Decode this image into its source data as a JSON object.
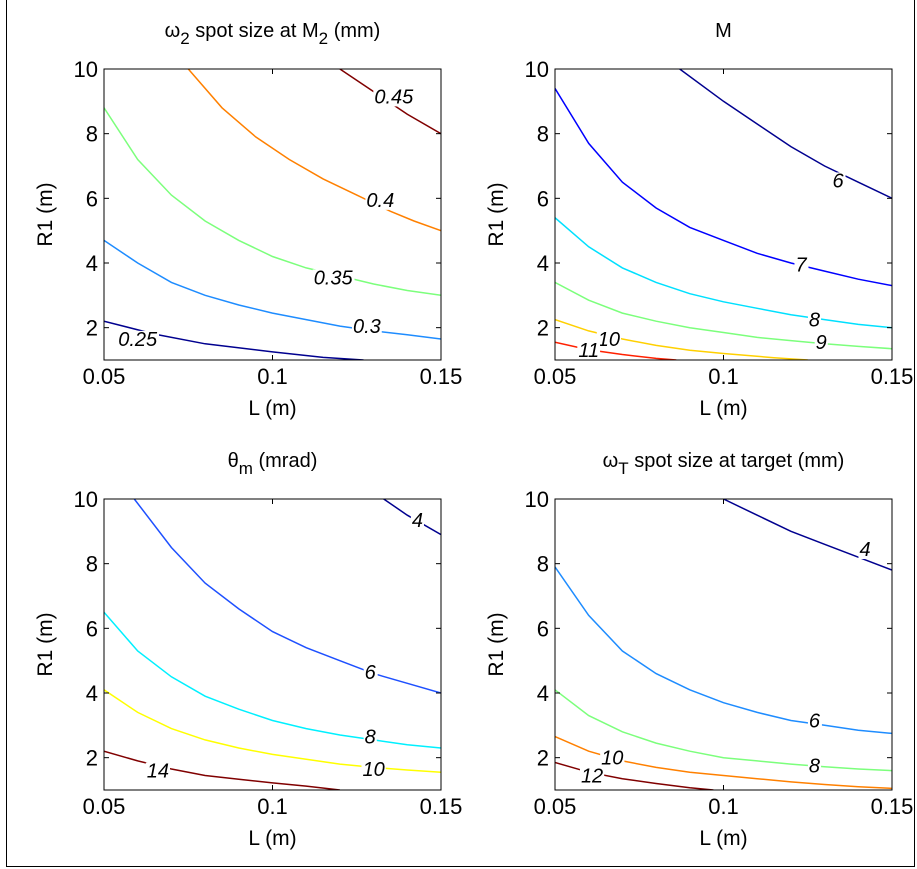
{
  "chart_data": [
    {
      "type": "contour",
      "title": "ω₂ spot size at M₂ (mm)",
      "title_main": "ω",
      "title_sub": "2",
      "title_rest": " spot size at M",
      "title_sub2": "2",
      "title_tail": " (mm)",
      "xlabel": "L (m)",
      "ylabel": "R1 (m)",
      "xlim": [
        0.05,
        0.15
      ],
      "ylim": [
        1,
        10
      ],
      "xticks": [
        "0.05",
        "0.1",
        "0.15"
      ],
      "yticks": [
        "2",
        "4",
        "6",
        "8",
        "10"
      ],
      "levels": [
        {
          "label": "0.25",
          "color": "#00008f",
          "points": [
            [
              0.05,
              2.2
            ],
            [
              0.065,
              1.8
            ],
            [
              0.08,
              1.5
            ],
            [
              0.1,
              1.25
            ],
            [
              0.115,
              1.08
            ],
            [
              0.127,
              1.0
            ]
          ],
          "label_at": [
            0.06,
            1.6
          ]
        },
        {
          "label": "0.3",
          "color": "#1e8cff",
          "points": [
            [
              0.05,
              4.7
            ],
            [
              0.06,
              4.0
            ],
            [
              0.07,
              3.4
            ],
            [
              0.08,
              3.0
            ],
            [
              0.09,
              2.7
            ],
            [
              0.1,
              2.45
            ],
            [
              0.11,
              2.25
            ],
            [
              0.12,
              2.05
            ],
            [
              0.13,
              1.9
            ],
            [
              0.14,
              1.78
            ],
            [
              0.15,
              1.65
            ]
          ],
          "label_at": [
            0.128,
            2.0
          ]
        },
        {
          "label": "0.35",
          "color": "#7cff7c",
          "points": [
            [
              0.05,
              8.8
            ],
            [
              0.06,
              7.2
            ],
            [
              0.07,
              6.1
            ],
            [
              0.08,
              5.3
            ],
            [
              0.09,
              4.7
            ],
            [
              0.1,
              4.2
            ],
            [
              0.11,
              3.85
            ],
            [
              0.12,
              3.6
            ],
            [
              0.13,
              3.35
            ],
            [
              0.14,
              3.15
            ],
            [
              0.15,
              3.0
            ]
          ],
          "label_at": [
            0.118,
            3.5
          ]
        },
        {
          "label": "0.4",
          "color": "#ff8000",
          "points": [
            [
              0.075,
              10
            ],
            [
              0.085,
              8.8
            ],
            [
              0.095,
              7.9
            ],
            [
              0.105,
              7.2
            ],
            [
              0.115,
              6.6
            ],
            [
              0.125,
              6.1
            ],
            [
              0.135,
              5.6
            ],
            [
              0.142,
              5.3
            ],
            [
              0.15,
              5.0
            ]
          ],
          "label_at": [
            0.132,
            5.9
          ]
        },
        {
          "label": "0.45",
          "color": "#800000",
          "points": [
            [
              0.12,
              10
            ],
            [
              0.13,
              9.3
            ],
            [
              0.14,
              8.6
            ],
            [
              0.15,
              8.0
            ]
          ],
          "label_at": [
            0.136,
            9.1
          ]
        }
      ]
    },
    {
      "type": "contour",
      "title": "M",
      "xlabel": "L (m)",
      "ylabel": "R1 (m)",
      "xlim": [
        0.05,
        0.15
      ],
      "ylim": [
        1,
        10
      ],
      "xticks": [
        "0.05",
        "0.1",
        "0.15"
      ],
      "yticks": [
        "2",
        "4",
        "6",
        "8",
        "10"
      ],
      "levels": [
        {
          "label": "6",
          "color": "#00008f",
          "points": [
            [
              0.087,
              10
            ],
            [
              0.1,
              9.0
            ],
            [
              0.11,
              8.3
            ],
            [
              0.12,
              7.6
            ],
            [
              0.13,
              7.0
            ],
            [
              0.14,
              6.5
            ],
            [
              0.15,
              6.0
            ]
          ],
          "label_at": [
            0.134,
            6.5
          ]
        },
        {
          "label": "7",
          "color": "#0000ff",
          "points": [
            [
              0.05,
              9.4
            ],
            [
              0.06,
              7.7
            ],
            [
              0.07,
              6.5
            ],
            [
              0.08,
              5.7
            ],
            [
              0.09,
              5.1
            ],
            [
              0.1,
              4.7
            ],
            [
              0.11,
              4.3
            ],
            [
              0.12,
              4.0
            ],
            [
              0.13,
              3.75
            ],
            [
              0.14,
              3.5
            ],
            [
              0.15,
              3.3
            ]
          ],
          "label_at": [
            0.123,
            3.9
          ]
        },
        {
          "label": "8",
          "color": "#00e0ff",
          "points": [
            [
              0.05,
              5.4
            ],
            [
              0.06,
              4.5
            ],
            [
              0.07,
              3.85
            ],
            [
              0.08,
              3.4
            ],
            [
              0.09,
              3.05
            ],
            [
              0.1,
              2.8
            ],
            [
              0.11,
              2.6
            ],
            [
              0.12,
              2.4
            ],
            [
              0.13,
              2.25
            ],
            [
              0.14,
              2.1
            ],
            [
              0.15,
              2.0
            ]
          ],
          "label_at": [
            0.127,
            2.2
          ]
        },
        {
          "label": "9",
          "color": "#7cff7c",
          "points": [
            [
              0.05,
              3.4
            ],
            [
              0.06,
              2.85
            ],
            [
              0.07,
              2.45
            ],
            [
              0.08,
              2.2
            ],
            [
              0.09,
              2.0
            ],
            [
              0.1,
              1.85
            ],
            [
              0.11,
              1.7
            ],
            [
              0.12,
              1.6
            ],
            [
              0.13,
              1.5
            ],
            [
              0.14,
              1.42
            ],
            [
              0.15,
              1.35
            ]
          ],
          "label_at": [
            0.129,
            1.5
          ]
        },
        {
          "label": "10",
          "color": "#ffd000",
          "points": [
            [
              0.05,
              2.25
            ],
            [
              0.06,
              1.9
            ],
            [
              0.07,
              1.65
            ],
            [
              0.08,
              1.45
            ],
            [
              0.09,
              1.3
            ],
            [
              0.1,
              1.2
            ],
            [
              0.115,
              1.07
            ],
            [
              0.125,
              1.0
            ]
          ],
          "label_at": [
            0.066,
            1.6
          ]
        },
        {
          "label": "11",
          "color": "#ff2000",
          "points": [
            [
              0.05,
              1.55
            ],
            [
              0.06,
              1.32
            ],
            [
              0.07,
              1.17
            ],
            [
              0.08,
              1.05
            ],
            [
              0.086,
              1.0
            ]
          ],
          "label_at": [
            0.06,
            1.25
          ]
        }
      ]
    },
    {
      "type": "contour",
      "title": "θm (mrad)",
      "title_main": "θ",
      "title_sub": "m",
      "title_tail": " (mrad)",
      "xlabel": "L (m)",
      "ylabel": "R1 (m)",
      "xlim": [
        0.05,
        0.15
      ],
      "ylim": [
        1,
        10
      ],
      "xticks": [
        "0.05",
        "0.1",
        "0.15"
      ],
      "yticks": [
        "2",
        "4",
        "6",
        "8",
        "10"
      ],
      "levels": [
        {
          "label": "4",
          "color": "#00008f",
          "points": [
            [
              0.133,
              10
            ],
            [
              0.14,
              9.5
            ],
            [
              0.15,
              8.9
            ]
          ],
          "label_at": [
            0.143,
            9.3
          ]
        },
        {
          "label": "6",
          "color": "#1e50ff",
          "points": [
            [
              0.059,
              10
            ],
            [
              0.07,
              8.5
            ],
            [
              0.08,
              7.4
            ],
            [
              0.09,
              6.6
            ],
            [
              0.1,
              5.9
            ],
            [
              0.11,
              5.4
            ],
            [
              0.12,
              5.0
            ],
            [
              0.13,
              4.6
            ],
            [
              0.14,
              4.3
            ],
            [
              0.15,
              4.0
            ]
          ],
          "label_at": [
            0.129,
            4.6
          ]
        },
        {
          "label": "8",
          "color": "#00f0ff",
          "points": [
            [
              0.05,
              6.5
            ],
            [
              0.06,
              5.3
            ],
            [
              0.07,
              4.5
            ],
            [
              0.08,
              3.9
            ],
            [
              0.09,
              3.5
            ],
            [
              0.1,
              3.15
            ],
            [
              0.11,
              2.9
            ],
            [
              0.12,
              2.7
            ],
            [
              0.13,
              2.55
            ],
            [
              0.14,
              2.4
            ],
            [
              0.15,
              2.3
            ]
          ],
          "label_at": [
            0.129,
            2.6
          ]
        },
        {
          "label": "10",
          "color": "#ffff00",
          "points": [
            [
              0.05,
              4.1
            ],
            [
              0.06,
              3.4
            ],
            [
              0.07,
              2.9
            ],
            [
              0.08,
              2.55
            ],
            [
              0.09,
              2.3
            ],
            [
              0.1,
              2.1
            ],
            [
              0.11,
              1.95
            ],
            [
              0.12,
              1.8
            ],
            [
              0.13,
              1.7
            ],
            [
              0.14,
              1.62
            ],
            [
              0.15,
              1.55
            ]
          ],
          "label_at": [
            0.13,
            1.6
          ]
        },
        {
          "label": "14",
          "color": "#800000",
          "points": [
            [
              0.05,
              2.2
            ],
            [
              0.06,
              1.9
            ],
            [
              0.07,
              1.65
            ],
            [
              0.08,
              1.45
            ],
            [
              0.09,
              1.33
            ],
            [
              0.1,
              1.22
            ],
            [
              0.11,
              1.12
            ],
            [
              0.12,
              1.0
            ]
          ],
          "label_at": [
            0.066,
            1.55
          ]
        }
      ]
    },
    {
      "type": "contour",
      "title": "ωT spot size at target (mm)",
      "title_main": "ω",
      "title_sub": "T",
      "title_tail": " spot size at target (mm)",
      "xlabel": "L (m)",
      "ylabel": "R1 (m)",
      "xlim": [
        0.05,
        0.15
      ],
      "ylim": [
        1,
        10
      ],
      "xticks": [
        "0.05",
        "0.1",
        "0.15"
      ],
      "yticks": [
        "2",
        "4",
        "6",
        "8",
        "10"
      ],
      "levels": [
        {
          "label": "4",
          "color": "#00008f",
          "points": [
            [
              0.1,
              10
            ],
            [
              0.11,
              9.5
            ],
            [
              0.12,
              9.0
            ],
            [
              0.13,
              8.6
            ],
            [
              0.14,
              8.2
            ],
            [
              0.15,
              7.8
            ]
          ],
          "label_at": [
            0.142,
            8.4
          ]
        },
        {
          "label": "6",
          "color": "#1e8cff",
          "points": [
            [
              0.05,
              7.9
            ],
            [
              0.06,
              6.4
            ],
            [
              0.07,
              5.3
            ],
            [
              0.08,
              4.6
            ],
            [
              0.09,
              4.1
            ],
            [
              0.1,
              3.7
            ],
            [
              0.11,
              3.4
            ],
            [
              0.12,
              3.15
            ],
            [
              0.13,
              3.0
            ],
            [
              0.14,
              2.85
            ],
            [
              0.15,
              2.75
            ]
          ],
          "label_at": [
            0.127,
            3.1
          ]
        },
        {
          "label": "8",
          "color": "#7cff7c",
          "points": [
            [
              0.05,
              4.1
            ],
            [
              0.06,
              3.3
            ],
            [
              0.07,
              2.8
            ],
            [
              0.08,
              2.45
            ],
            [
              0.09,
              2.2
            ],
            [
              0.1,
              2.0
            ],
            [
              0.11,
              1.9
            ],
            [
              0.12,
              1.8
            ],
            [
              0.13,
              1.72
            ],
            [
              0.14,
              1.65
            ],
            [
              0.15,
              1.6
            ]
          ],
          "label_at": [
            0.127,
            1.7
          ]
        },
        {
          "label": "10",
          "color": "#ff8000",
          "points": [
            [
              0.05,
              2.65
            ],
            [
              0.06,
              2.2
            ],
            [
              0.07,
              1.9
            ],
            [
              0.08,
              1.7
            ],
            [
              0.09,
              1.55
            ],
            [
              0.1,
              1.45
            ],
            [
              0.11,
              1.35
            ],
            [
              0.12,
              1.25
            ],
            [
              0.13,
              1.17
            ],
            [
              0.14,
              1.1
            ],
            [
              0.15,
              1.05
            ]
          ],
          "label_at": [
            0.067,
            1.95
          ]
        },
        {
          "label": "12",
          "color": "#800000",
          "points": [
            [
              0.05,
              1.85
            ],
            [
              0.06,
              1.55
            ],
            [
              0.07,
              1.35
            ],
            [
              0.08,
              1.2
            ],
            [
              0.09,
              1.07
            ],
            [
              0.097,
              1.0
            ]
          ],
          "label_at": [
            0.061,
            1.4
          ]
        }
      ]
    }
  ]
}
